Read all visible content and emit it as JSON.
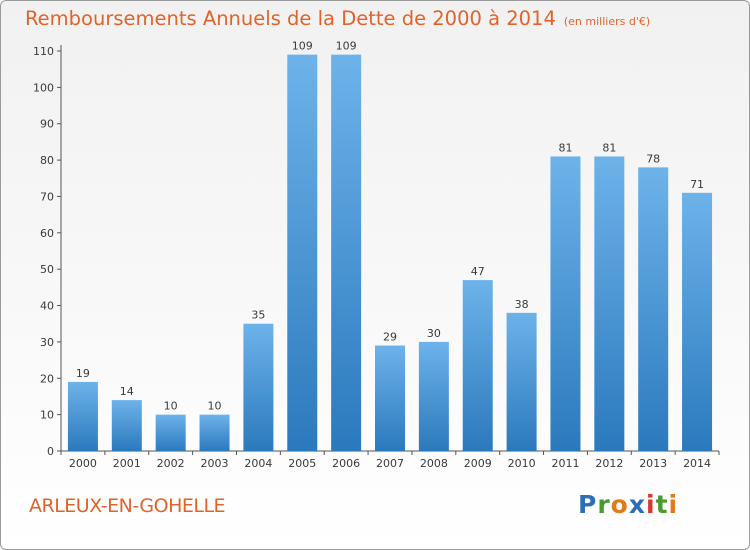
{
  "title": "Remboursements Annuels de la Dette de 2000 à 2014",
  "subtitle": "(en milliers d'€)",
  "footer_label": "ARLEUX-EN-GOHELLE",
  "logo": {
    "text": "Proxiti",
    "letters": [
      {
        "char": "P",
        "color": "#2c6fb8"
      },
      {
        "char": "r",
        "color": "#4b9a2f"
      },
      {
        "char": "o",
        "color": "#e07a1a"
      },
      {
        "char": "x",
        "color": "#2c6fb8"
      },
      {
        "char": "i",
        "color": "#d8392c"
      },
      {
        "char": "t",
        "color": "#4b9a2f"
      },
      {
        "char": "i",
        "color": "#e07a1a"
      }
    ]
  },
  "colors": {
    "accent": "#e0642a",
    "bar_top": "#6db3ea",
    "bar_bottom": "#2b79bd"
  },
  "chart_data": {
    "type": "bar",
    "categories": [
      "2000",
      "2001",
      "2002",
      "2003",
      "2004",
      "2005",
      "2006",
      "2007",
      "2008",
      "2009",
      "2010",
      "2011",
      "2012",
      "2013",
      "2014"
    ],
    "values": [
      19,
      14,
      10,
      10,
      35,
      109,
      109,
      29,
      30,
      47,
      38,
      81,
      81,
      78,
      71
    ],
    "ylim": [
      0,
      110
    ],
    "yticks": [
      0,
      10,
      20,
      30,
      40,
      50,
      60,
      70,
      80,
      90,
      100,
      110
    ],
    "grid": false
  }
}
